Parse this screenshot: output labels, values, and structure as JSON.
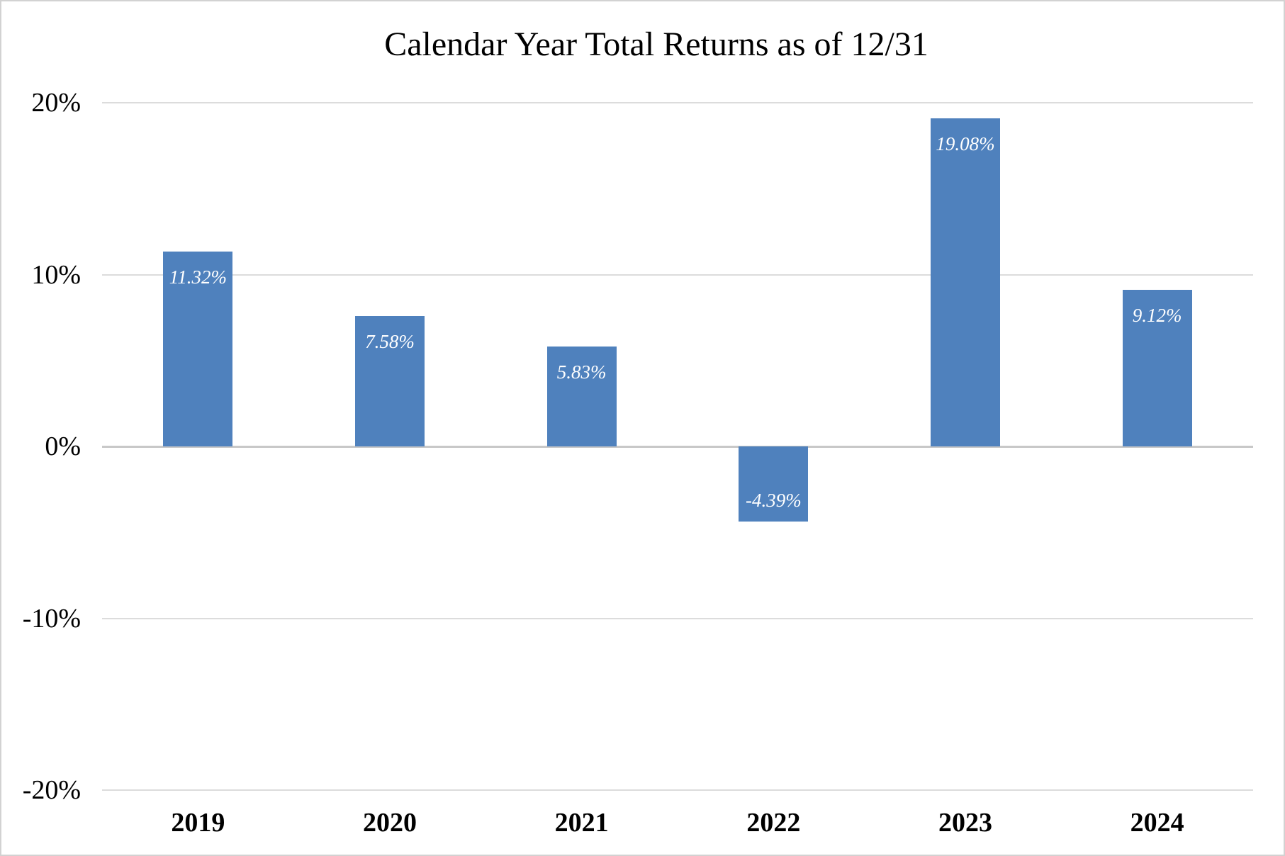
{
  "chart_data": {
    "type": "bar",
    "title": "Calendar Year Total Returns as of 12/31",
    "categories": [
      "2019",
      "2020",
      "2021",
      "2022",
      "2023",
      "2024"
    ],
    "values": [
      11.32,
      7.58,
      5.83,
      -4.39,
      19.08,
      9.12
    ],
    "data_labels": [
      "11.32%",
      "7.58%",
      "5.83%",
      "-4.39%",
      "19.08%",
      "9.12%"
    ],
    "xlabel": "",
    "ylabel": "",
    "ylim": [
      -20,
      20
    ],
    "yticks": [
      {
        "value": 20,
        "label": "20%"
      },
      {
        "value": 10,
        "label": "10%"
      },
      {
        "value": 0,
        "label": "0%"
      },
      {
        "value": -10,
        "label": "-10%"
      },
      {
        "value": -20,
        "label": "-20%"
      }
    ],
    "grid": true,
    "legend_position": "none",
    "colors": {
      "bar": "#4f81bd",
      "data_label": "#ffffff",
      "gridline": "#dcdcdc",
      "zero_line": "#c8c8c8",
      "axis_text": "#000000",
      "chart_border": "#d2d2d2",
      "background": "#ffffff"
    }
  }
}
